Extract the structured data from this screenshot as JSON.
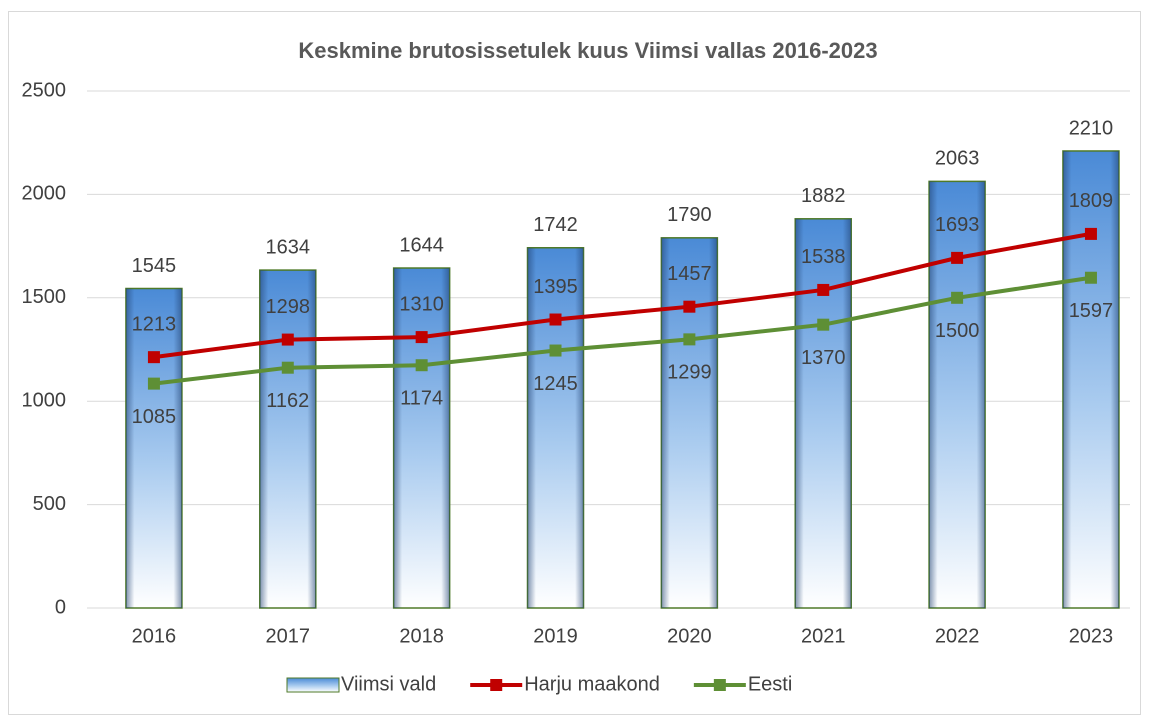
{
  "chart_data": {
    "type": "bar",
    "title": "Keskmine brutosissetulek kuus Viimsi vallas 2016-2023",
    "categories": [
      "2016",
      "2017",
      "2018",
      "2019",
      "2020",
      "2021",
      "2022",
      "2023"
    ],
    "series": [
      {
        "name": "Viimsi vald",
        "type": "bar",
        "color": "#5b9bd5",
        "values": [
          1545,
          1634,
          1644,
          1742,
          1790,
          1882,
          2063,
          2210
        ]
      },
      {
        "name": "Harju maakond",
        "type": "line",
        "color": "#c00000",
        "values": [
          1213,
          1298,
          1310,
          1395,
          1457,
          1538,
          1693,
          1809
        ]
      },
      {
        "name": "Eesti",
        "type": "line",
        "color": "#5e8f35",
        "values": [
          1085,
          1162,
          1174,
          1245,
          1299,
          1370,
          1500,
          1597
        ]
      }
    ],
    "ylim": [
      0,
      2500
    ],
    "yticks": [
      0,
      500,
      1000,
      1500,
      2000,
      2500
    ],
    "grid": true,
    "legend": "bottom"
  }
}
